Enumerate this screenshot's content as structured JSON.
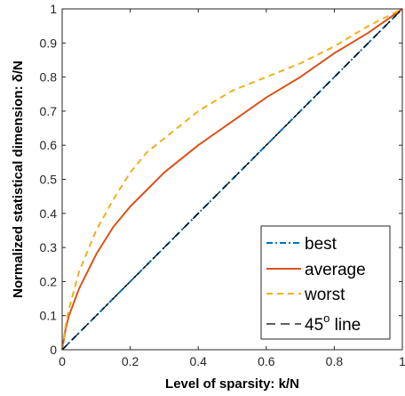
{
  "chart_data": {
    "type": "line",
    "xlabel": "Level of sparsity: k/N",
    "ylabel": "Normalized statistical dimension: δ/N",
    "xlim": [
      0,
      1
    ],
    "ylim": [
      0,
      1
    ],
    "xticks": [
      0,
      0.2,
      0.4,
      0.6,
      0.8,
      1
    ],
    "xtick_labels": [
      "0",
      "0.2",
      "0.4",
      "0.6",
      "0.8",
      "1"
    ],
    "yticks": [
      0,
      0.1,
      0.2,
      0.3,
      0.4,
      0.5,
      0.6,
      0.7,
      0.8,
      0.9,
      1
    ],
    "ytick_labels": [
      "0",
      "0.1",
      "0.2",
      "0.3",
      "0.4",
      "0.5",
      "0.6",
      "0.7",
      "0.8",
      "0.9",
      "1"
    ],
    "grid": false,
    "legend_position": "bottom-right",
    "series": [
      {
        "name": "best",
        "color": "#0072BD",
        "dash": "dash-dot",
        "x": [
          0,
          0.2,
          0.4,
          0.6,
          0.8,
          1
        ],
        "y": [
          0,
          0.2,
          0.4,
          0.6,
          0.8,
          1
        ]
      },
      {
        "name": "average",
        "color": "#D95319",
        "dash": "solid",
        "x": [
          0,
          0.01,
          0.02,
          0.05,
          0.1,
          0.15,
          0.2,
          0.25,
          0.3,
          0.4,
          0.5,
          0.6,
          0.7,
          0.8,
          0.9,
          1
        ],
        "y": [
          0,
          0.06,
          0.1,
          0.18,
          0.28,
          0.36,
          0.42,
          0.47,
          0.52,
          0.6,
          0.67,
          0.74,
          0.8,
          0.87,
          0.93,
          1
        ]
      },
      {
        "name": "worst",
        "color": "#EDB120",
        "dash": "dashed",
        "x": [
          0,
          0.01,
          0.02,
          0.05,
          0.1,
          0.15,
          0.2,
          0.25,
          0.3,
          0.35,
          0.4,
          0.45,
          0.5,
          0.6,
          0.7,
          0.8,
          0.9,
          1
        ],
        "y": [
          0,
          0.07,
          0.12,
          0.23,
          0.35,
          0.44,
          0.52,
          0.58,
          0.62,
          0.66,
          0.7,
          0.73,
          0.76,
          0.8,
          0.84,
          0.89,
          0.95,
          1
        ]
      },
      {
        "name": "45",
        "name_superscript": "o",
        "name_suffix": " line",
        "color": "#000000",
        "dash": "long-dash",
        "x": [
          0,
          1
        ],
        "y": [
          0,
          1
        ]
      }
    ]
  }
}
